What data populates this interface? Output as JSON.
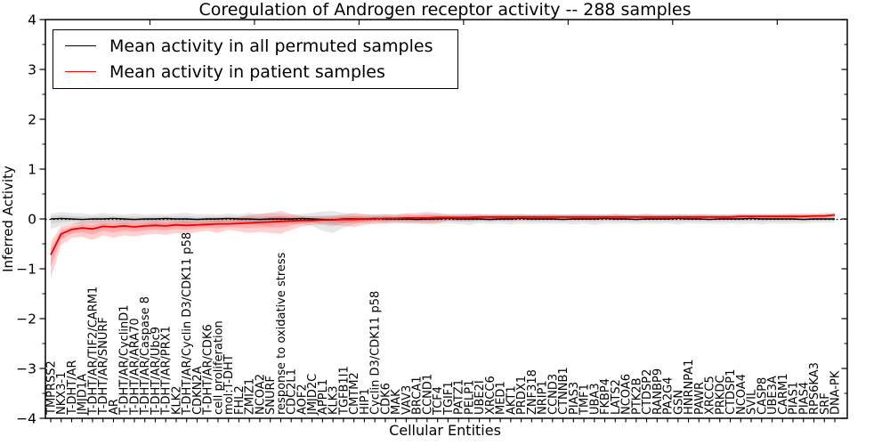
{
  "title": "Coregulation of Androgen receptor activity -- 288 samples",
  "legend": {
    "items": [
      {
        "label": "Mean activity in all permuted samples",
        "color": "#000000"
      },
      {
        "label": "Mean activity in patient samples",
        "color": "#ff0000"
      }
    ]
  },
  "axes": {
    "ylabel": "Inferred Activity",
    "xlabel": "Cellular Entities",
    "ytick_labels": [
      "4",
      "3",
      "2",
      "1",
      "0",
      "−1",
      "−2",
      "−3",
      "−4"
    ],
    "ytick_values": [
      4,
      3,
      2,
      1,
      0,
      -1,
      -2,
      -3,
      -4
    ]
  },
  "chart_data": {
    "type": "line",
    "title": "Coregulation of Androgen receptor activity -- 288 samples",
    "xlabel": "Cellular Entities",
    "ylabel": "Inferred Activity",
    "ylim": [
      -4,
      4
    ],
    "grid": false,
    "legend_position": "upper left",
    "zero_line": {
      "style": "dotted",
      "color": "#000000",
      "y": 0
    },
    "categories": [
      "TMPRSS2",
      "NKX3-1",
      "T-DHT/AR",
      "JMJD1A",
      "T-DHT/AR/TIF2/CARM1",
      "T-DHT/AR/SNURF",
      "AR",
      "T-DHT/AR/CyclinD1",
      "T-DHT/AR/ARA70",
      "T-DHT/AR/Caspase 8",
      "T-DHT/AR/Ubc9",
      "T-DHT/AR/PRX1",
      "KLK2",
      "T-DHT/AR/Cyclin D3/CDK11 p58",
      "CDKN2A",
      "T-DHT/AR/CDK6",
      "cell proliferation",
      "mol:T-DHT",
      "FHL2",
      "ZMIZ1",
      "NCOA2",
      "SNURF",
      "response to oxidative stress",
      "CDC2L1",
      "AOF2",
      "JMJD2C",
      "APPL1",
      "KLK3",
      "TGFB1I1",
      "CMTM2",
      "HIP1",
      "Cyclin D3/CDK11 p58",
      "CDK6",
      "MAK",
      "VAV3",
      "BRCA1",
      "CCND1",
      "TCF4",
      "TGIF1",
      "PATZ1",
      "PELP1",
      "UBE2I",
      "XRCC6",
      "MED1",
      "AKT1",
      "PRDX1",
      "ZNF318",
      "NRIP1",
      "CCND3",
      "CTNNB1",
      "PIAS3",
      "TMF1",
      "UBA3",
      "FKBP4",
      "LATS2",
      "NCOA6",
      "PTK2B",
      "CTDSP2",
      "RANBP9",
      "PA2G4",
      "GSN",
      "HNRNPA1",
      "PAWR",
      "XRCC5",
      "PRKDC",
      "CTDSP1",
      "NCOA4",
      "SVIL",
      "CASP8",
      "UBE3A",
      "CARM1",
      "PIAS1",
      "PIAS4",
      "RPS6KA3",
      "SRF",
      "DNA-PK"
    ],
    "series": [
      {
        "name": "Mean activity in all permuted samples",
        "color": "#000000",
        "line_width": 1.4,
        "band_color": "rgba(128,128,128,0.18)",
        "values": [
          0.0,
          0.01,
          0.0,
          -0.01,
          0.0,
          0.0,
          0.01,
          0.0,
          -0.01,
          0.0,
          0.0,
          0.01,
          0.0,
          0.0,
          -0.01,
          0.0,
          0.0,
          0.01,
          0.0,
          0.0,
          -0.01,
          0.0,
          0.0,
          0.0,
          0.01,
          0.0,
          -0.01,
          -0.02,
          0.0,
          0.0,
          0.0,
          0.01,
          0.0,
          0.0,
          0.0,
          -0.01,
          0.0,
          0.0,
          0.01,
          0.0,
          0.0,
          0.0,
          -0.01,
          0.0,
          0.0,
          0.01,
          0.0,
          0.0,
          0.0,
          -0.01,
          0.0,
          0.0,
          0.0,
          0.01,
          0.0,
          0.0,
          -0.01,
          0.0,
          0.0,
          0.0,
          0.01,
          0.0,
          0.0,
          -0.01,
          0.0,
          0.0,
          0.0,
          0.01,
          0.0,
          0.0,
          0.0,
          0.0,
          -0.01,
          0.0,
          0.0,
          0.0
        ],
        "band_lo": [
          -0.2,
          -0.14,
          -0.1,
          -0.12,
          -0.09,
          -0.12,
          -0.09,
          -0.11,
          -0.09,
          -0.1,
          -0.12,
          -0.09,
          -0.11,
          -0.13,
          -0.09,
          -0.1,
          -0.12,
          -0.09,
          -0.11,
          -0.1,
          -0.12,
          -0.14,
          -0.1,
          -0.09,
          -0.11,
          -0.14,
          -0.24,
          -0.28,
          -0.18,
          -0.1,
          -0.09,
          -0.1,
          -0.09,
          -0.1,
          -0.09,
          -0.1,
          -0.09,
          -0.1,
          -0.09,
          -0.1,
          -0.12,
          -0.09,
          -0.1,
          -0.09,
          -0.11,
          -0.09,
          -0.1,
          -0.09,
          -0.1,
          -0.09,
          -0.11,
          -0.09,
          -0.12,
          -0.09,
          -0.1,
          -0.09,
          -0.1,
          -0.09,
          -0.1,
          -0.09,
          -0.11,
          -0.09,
          -0.1,
          -0.09,
          -0.1,
          -0.09,
          -0.1,
          -0.09,
          -0.11,
          -0.09,
          -0.1,
          -0.09,
          -0.09,
          -0.08,
          -0.08,
          -0.07
        ],
        "band_hi": [
          0.1,
          0.14,
          0.12,
          0.11,
          0.09,
          0.12,
          0.1,
          0.09,
          0.11,
          0.09,
          0.1,
          0.09,
          0.11,
          0.12,
          0.09,
          0.1,
          0.09,
          0.11,
          0.09,
          0.12,
          0.1,
          0.12,
          0.1,
          0.09,
          0.1,
          0.12,
          0.15,
          0.16,
          0.12,
          0.1,
          0.09,
          0.1,
          0.09,
          0.09,
          0.1,
          0.09,
          0.1,
          0.1,
          0.09,
          0.09,
          0.1,
          0.09,
          0.1,
          0.09,
          0.1,
          0.09,
          0.09,
          0.1,
          0.09,
          0.09,
          0.1,
          0.09,
          0.1,
          0.09,
          0.1,
          0.09,
          0.09,
          0.1,
          0.09,
          0.09,
          0.1,
          0.09,
          0.09,
          0.1,
          0.09,
          0.09,
          0.1,
          0.09,
          0.09,
          0.09,
          0.09,
          0.09,
          0.08,
          0.08,
          0.08,
          0.08
        ]
      },
      {
        "name": "Mean activity in patient samples",
        "color": "#ee0000",
        "line_width": 1.8,
        "band_color": "rgba(255,0,0,0.18)",
        "values": [
          -0.72,
          -0.3,
          -0.21,
          -0.18,
          -0.2,
          -0.15,
          -0.16,
          -0.14,
          -0.16,
          -0.14,
          -0.13,
          -0.14,
          -0.12,
          -0.13,
          -0.12,
          -0.11,
          -0.1,
          -0.1,
          -0.09,
          -0.08,
          -0.07,
          -0.06,
          -0.05,
          -0.04,
          -0.03,
          -0.03,
          -0.02,
          -0.02,
          -0.01,
          -0.01,
          0.0,
          0.0,
          0.01,
          0.01,
          0.02,
          0.02,
          0.02,
          0.03,
          0.03,
          0.03,
          0.03,
          0.04,
          0.04,
          0.04,
          0.04,
          0.04,
          0.04,
          0.04,
          0.04,
          0.04,
          0.04,
          0.04,
          0.04,
          0.04,
          0.04,
          0.04,
          0.04,
          0.04,
          0.04,
          0.04,
          0.04,
          0.04,
          0.04,
          0.04,
          0.04,
          0.04,
          0.05,
          0.05,
          0.05,
          0.05,
          0.05,
          0.05,
          0.05,
          0.06,
          0.06,
          0.08
        ],
        "band_lo": [
          -1.2,
          -0.52,
          -0.38,
          -0.36,
          -0.42,
          -0.33,
          -0.38,
          -0.33,
          -0.35,
          -0.32,
          -0.3,
          -0.32,
          -0.28,
          -0.3,
          -0.26,
          -0.24,
          -0.28,
          -0.22,
          -0.25,
          -0.28,
          -0.26,
          -0.28,
          -0.3,
          -0.22,
          -0.15,
          -0.12,
          -0.1,
          -0.12,
          -0.14,
          -0.16,
          -0.12,
          -0.08,
          -0.09,
          -0.07,
          -0.08,
          -0.08,
          -0.1,
          -0.08,
          -0.04,
          -0.05,
          -0.04,
          -0.03,
          -0.04,
          -0.03,
          -0.03,
          -0.02,
          -0.03,
          -0.02,
          -0.02,
          -0.02,
          -0.02,
          -0.02,
          -0.02,
          -0.01,
          -0.02,
          -0.01,
          -0.01,
          -0.02,
          -0.01,
          -0.01,
          -0.01,
          -0.01,
          -0.01,
          0.0,
          -0.01,
          0.0,
          0.0,
          0.0,
          0.0,
          0.0,
          0.0,
          0.01,
          0.01,
          0.01,
          0.02,
          0.03
        ],
        "band_hi": [
          -0.45,
          -0.15,
          -0.1,
          -0.05,
          -0.04,
          -0.04,
          -0.03,
          -0.02,
          -0.01,
          -0.02,
          0.0,
          -0.01,
          0.0,
          0.02,
          0.01,
          0.02,
          0.03,
          0.02,
          0.04,
          0.08,
          0.1,
          0.12,
          0.16,
          0.1,
          0.06,
          0.05,
          0.05,
          0.06,
          0.09,
          0.12,
          0.1,
          0.08,
          0.1,
          0.09,
          0.11,
          0.12,
          0.14,
          0.12,
          0.1,
          0.1,
          0.1,
          0.1,
          0.09,
          0.1,
          0.09,
          0.1,
          0.09,
          0.09,
          0.1,
          0.09,
          0.09,
          0.1,
          0.09,
          0.09,
          0.1,
          0.09,
          0.09,
          0.1,
          0.09,
          0.09,
          0.09,
          0.09,
          0.1,
          0.09,
          0.09,
          0.09,
          0.1,
          0.1,
          0.1,
          0.1,
          0.1,
          0.11,
          0.11,
          0.11,
          0.12,
          0.13
        ]
      }
    ]
  }
}
